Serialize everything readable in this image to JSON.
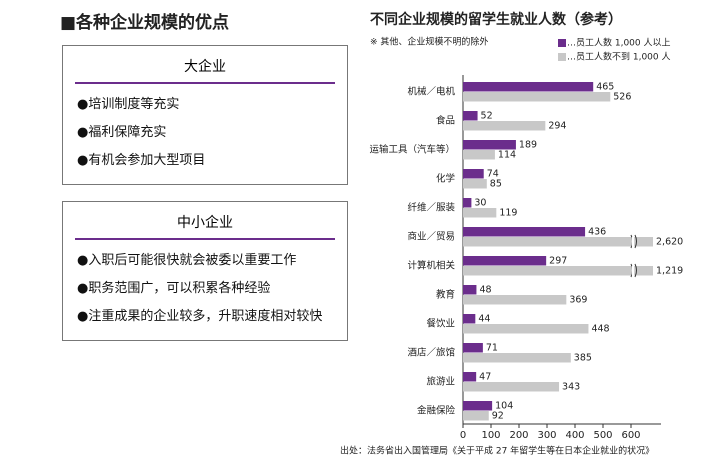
{
  "panel": {
    "title": "■各种企业规模的优点",
    "boxes": [
      {
        "heading": "大企业",
        "items": [
          "●培训制度等充实",
          "●福利保障充实",
          "●有机会参加大型项目"
        ]
      },
      {
        "heading": "中小企业",
        "items": [
          "●入职后可能很快就会被委以重要工作",
          "●职务范围广，可以积累各种经验",
          "●注重成果的企业较多，升职速度相对较快"
        ]
      }
    ]
  },
  "chart_data": {
    "type": "hbar",
    "title": "不同企业规模的留学生就业人数（参考）",
    "note": "※ 其他、企业规模不明的除外",
    "source": "出处：法务省出入国管理局《关于平成 27 年留学生等在日本企业就业的状况》",
    "categories": [
      "机械／电机",
      "食品",
      "运输工具（汽车等）",
      "化学",
      "纤维／服装",
      "商业／贸易",
      "计算机相关",
      "教育",
      "餐饮业",
      "酒店／旅馆",
      "旅游业",
      "金融保险"
    ],
    "series": [
      {
        "name": "…员工人数 1,000 人以上",
        "color": "#6b2d8c",
        "values": [
          465,
          52,
          189,
          74,
          30,
          436,
          297,
          48,
          44,
          71,
          47,
          104
        ]
      },
      {
        "name": "…员工人数不到 1,000 人",
        "color": "#c8c8c8",
        "values": [
          526,
          294,
          114,
          85,
          119,
          2620,
          1219,
          369,
          448,
          385,
          343,
          92
        ],
        "value_labels": [
          "526",
          "294",
          "114",
          "85",
          "119",
          "2,620",
          "1,219",
          "369",
          "448",
          "385",
          "343",
          "92"
        ]
      }
    ],
    "xlim": [
      0,
      600
    ],
    "xticks": [
      0,
      100,
      200,
      300,
      400,
      500,
      600
    ],
    "axis_break": true
  }
}
